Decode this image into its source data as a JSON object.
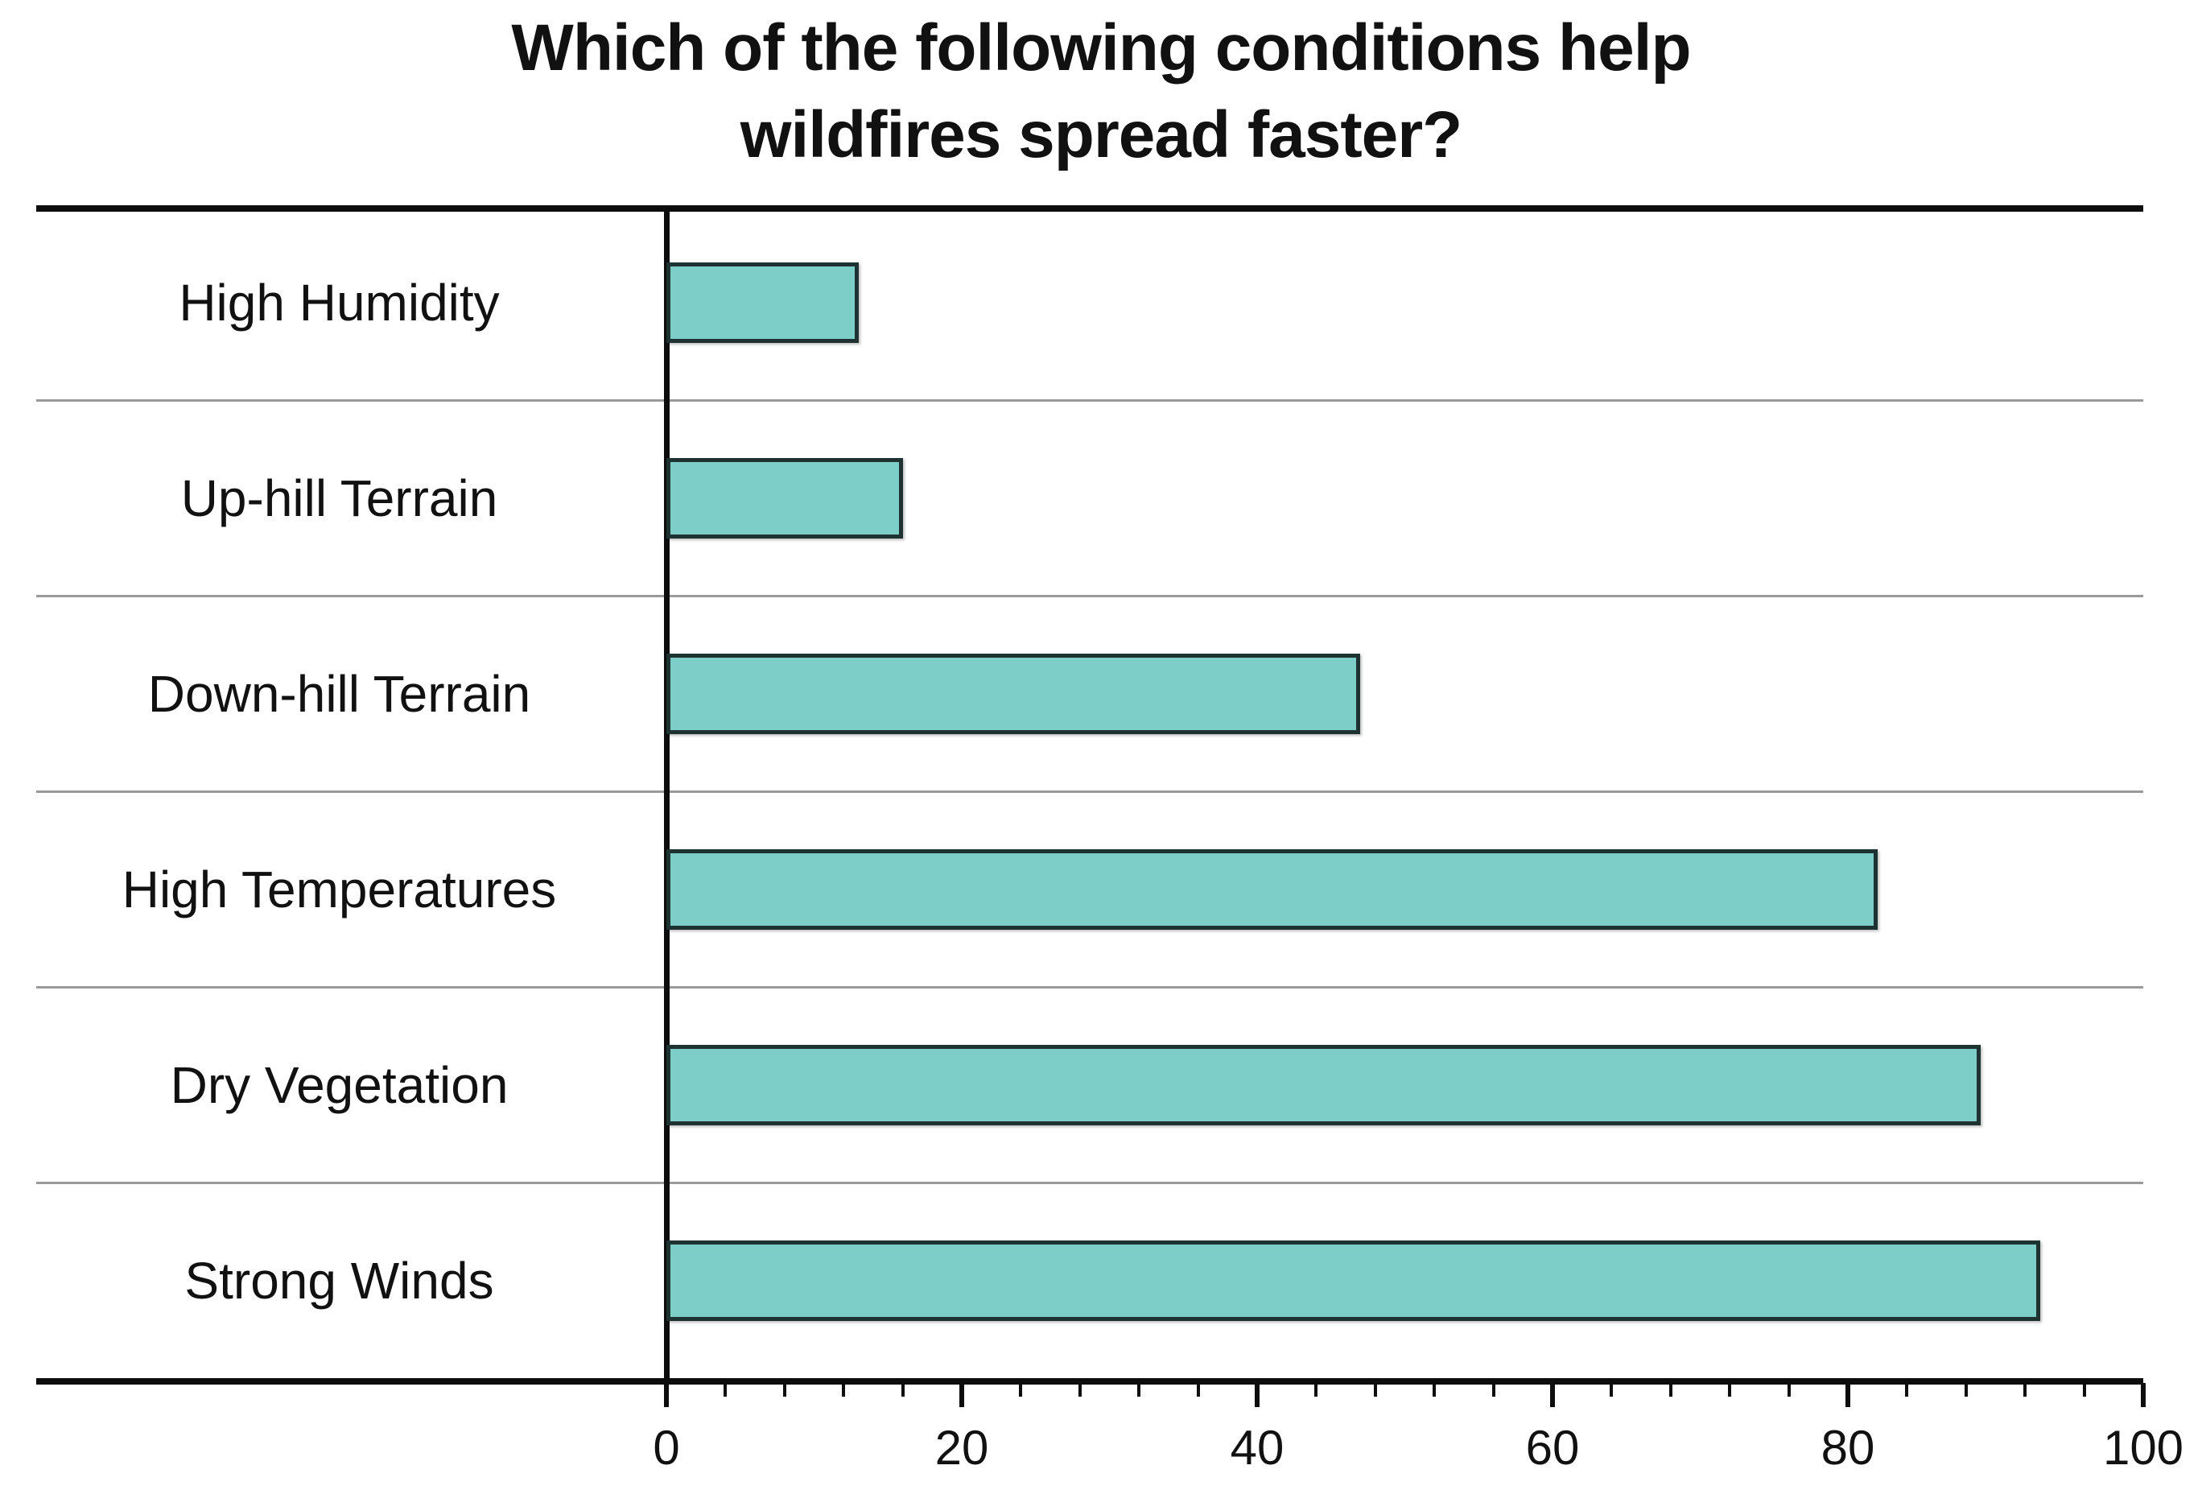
{
  "title_lines": [
    "Which of the following conditions help",
    "wildfires spread faster?"
  ],
  "chart_data": {
    "type": "bar",
    "orientation": "horizontal",
    "title": "Which of the following conditions help wildfires spread faster?",
    "categories": [
      "High Humidity",
      "Up-hill Terrain",
      "Down-hill Terrain",
      "High Temperatures",
      "Dry Vegetation",
      "Strong Winds"
    ],
    "values": [
      13,
      16,
      47,
      82,
      89,
      93
    ],
    "xlabel": "",
    "ylabel": "",
    "xlim": [
      0,
      100
    ],
    "x_major_ticks": [
      0,
      20,
      40,
      60,
      80,
      100
    ],
    "x_minor_tick_step": 4,
    "grid": "horizontal-row-separators",
    "legend": "none",
    "colors": {
      "bar_fill": "#7DCDC9",
      "bar_border": "#1E3232",
      "axis": "#0D0D0D",
      "separator": "#9A9A9A",
      "text": "#111111",
      "background": "#FFFFFF"
    }
  }
}
